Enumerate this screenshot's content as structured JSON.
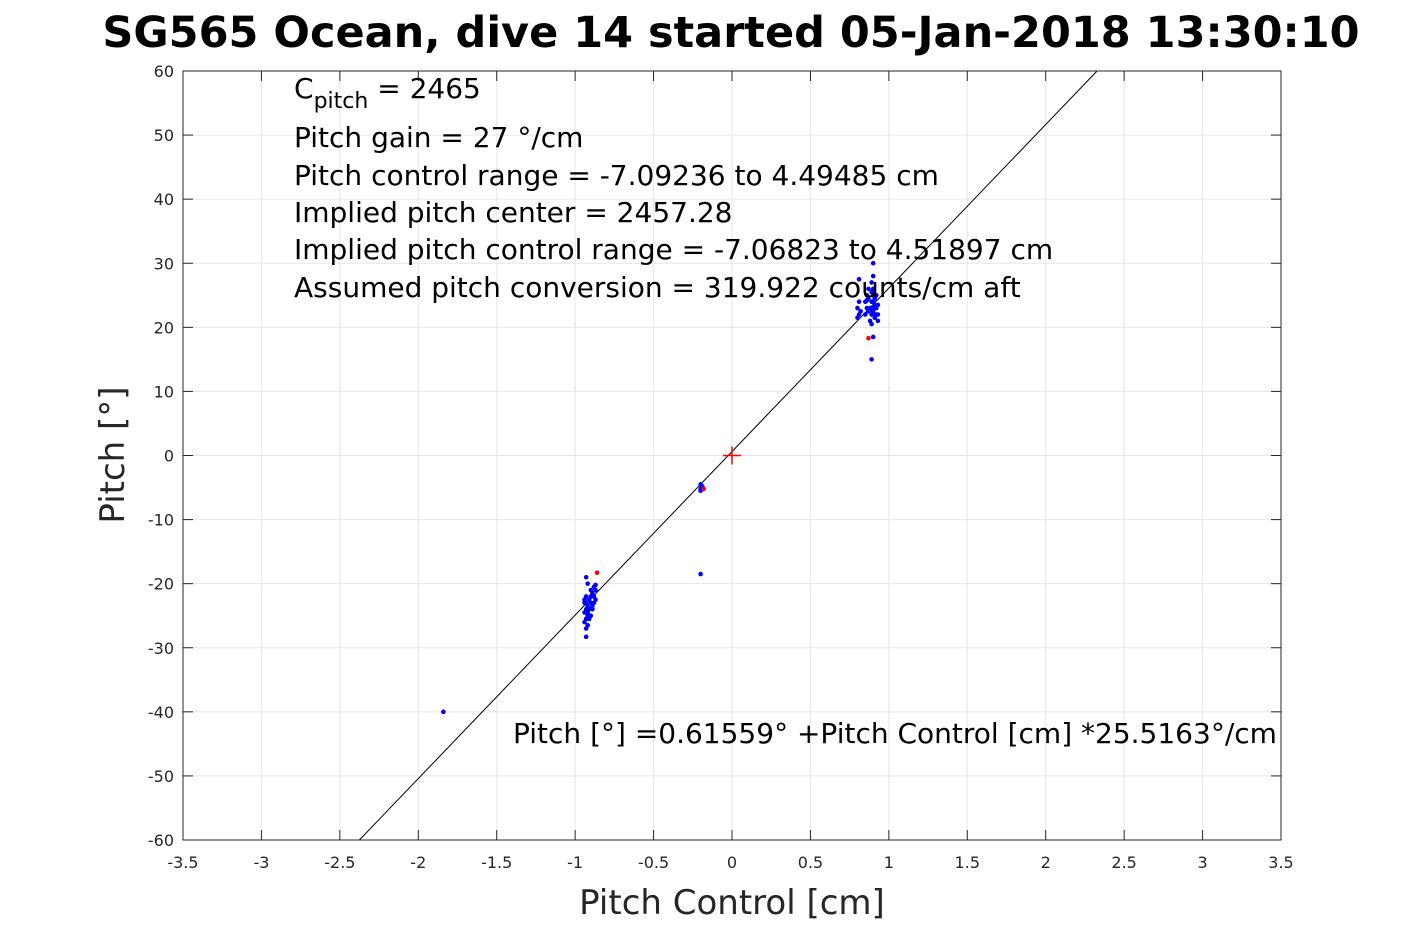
{
  "chart_data": {
    "type": "scatter",
    "title": "SG565 Ocean, dive 14 started 05-Jan-2018 13:30:10",
    "xlabel": "Pitch Control [cm]",
    "ylabel": "Pitch [°]",
    "xlim": [
      -3.5,
      3.5
    ],
    "ylim": [
      -60,
      60
    ],
    "xticks": [
      "-3.5",
      "-3",
      "-2.5",
      "-2",
      "-1.5",
      "-1",
      "-0.5",
      "0",
      "0.5",
      "1",
      "1.5",
      "2",
      "2.5",
      "3",
      "3.5"
    ],
    "yticks": [
      "60",
      "50",
      "40",
      "30",
      "20",
      "10",
      "0",
      "-10",
      "-20",
      "-30",
      "-40",
      "-50",
      "-60"
    ],
    "grid": true,
    "annotations": {
      "c_pitch_symbol": "C",
      "c_pitch_sub": "pitch",
      "c_pitch_value": " = 2465",
      "lines": [
        "Pitch gain = 27 °/cm",
        "Pitch control range = -7.09236 to 4.49485 cm",
        "Implied pitch center = 2457.28",
        "Implied pitch control range = -7.06823 to 4.51897 cm",
        "Assumed pitch conversion = 319.922 counts/cm aft"
      ],
      "equation": "Pitch [°] =0.61559° +Pitch Control [cm] *25.5163°/cm"
    },
    "fit_line": {
      "intercept": 0.61559,
      "slope": 25.5163
    },
    "center_marker": {
      "x": 0,
      "y": 0,
      "color": "#ff0000"
    },
    "series": [
      {
        "color": "#0000ff",
        "points": [
          [
            -1.84,
            -40
          ],
          [
            -0.2,
            -18.5
          ],
          [
            -0.2,
            -4.5
          ],
          [
            -0.19,
            -5.0
          ],
          [
            -0.2,
            -5.5
          ],
          [
            -0.19,
            -4.8
          ],
          [
            -0.2,
            -5.2
          ],
          [
            -0.93,
            -19
          ],
          [
            -0.92,
            -20
          ],
          [
            -0.93,
            -22
          ],
          [
            -0.94,
            -23
          ],
          [
            -0.92,
            -23.5
          ],
          [
            -0.93,
            -24
          ],
          [
            -0.94,
            -24.5
          ],
          [
            -0.92,
            -25
          ],
          [
            -0.93,
            -25.5
          ],
          [
            -0.94,
            -26
          ],
          [
            -0.92,
            -26.5
          ],
          [
            -0.93,
            -27
          ],
          [
            -0.93,
            -28.3
          ],
          [
            -0.91,
            -22.5
          ],
          [
            -0.9,
            -23
          ],
          [
            -0.91,
            -24
          ],
          [
            -0.9,
            -22
          ],
          [
            -0.89,
            -21.5
          ],
          [
            -0.9,
            -21
          ],
          [
            -0.88,
            -22
          ],
          [
            -0.88,
            -23
          ],
          [
            -0.89,
            -23.5
          ],
          [
            -0.87,
            -22.5
          ],
          [
            -0.87,
            -21
          ],
          [
            -0.88,
            -20.5
          ],
          [
            -0.87,
            -20.2
          ],
          [
            -0.89,
            -24
          ],
          [
            -0.9,
            -25
          ],
          [
            -0.91,
            -25.5
          ],
          [
            -0.92,
            -24.5
          ],
          [
            -0.93,
            -23
          ],
          [
            -0.94,
            -22.5
          ],
          [
            0.81,
            22
          ],
          [
            0.8,
            23
          ],
          [
            0.81,
            24
          ],
          [
            0.82,
            22.5
          ],
          [
            0.8,
            21.5
          ],
          [
            0.81,
            27.5
          ],
          [
            0.85,
            22
          ],
          [
            0.86,
            23
          ],
          [
            0.85,
            24
          ],
          [
            0.86,
            25
          ],
          [
            0.87,
            22.5
          ],
          [
            0.87,
            24.5
          ],
          [
            0.87,
            26
          ],
          [
            0.88,
            23
          ],
          [
            0.88,
            21
          ],
          [
            0.89,
            22
          ],
          [
            0.89,
            24
          ],
          [
            0.89,
            25.5
          ],
          [
            0.89,
            27
          ],
          [
            0.89,
            20.5
          ],
          [
            0.9,
            22.5
          ],
          [
            0.9,
            24
          ],
          [
            0.9,
            23
          ],
          [
            0.9,
            25
          ],
          [
            0.9,
            26
          ],
          [
            0.9,
            28
          ],
          [
            0.9,
            30
          ],
          [
            0.9,
            18.5
          ],
          [
            0.91,
            22
          ],
          [
            0.91,
            23.5
          ],
          [
            0.91,
            24.5
          ],
          [
            0.91,
            21.5
          ],
          [
            0.92,
            22
          ],
          [
            0.92,
            23
          ],
          [
            0.92,
            25
          ],
          [
            0.93,
            23.5
          ],
          [
            0.93,
            22
          ],
          [
            0.93,
            21
          ],
          [
            0.89,
            15
          ],
          [
            0.88,
            22.8
          ],
          [
            0.86,
            24.2
          ]
        ]
      },
      {
        "color": "#ff0000",
        "points": [
          [
            -0.86,
            -18.3
          ],
          [
            0.87,
            18.3
          ],
          [
            -0.18,
            -5.2
          ]
        ]
      }
    ]
  }
}
